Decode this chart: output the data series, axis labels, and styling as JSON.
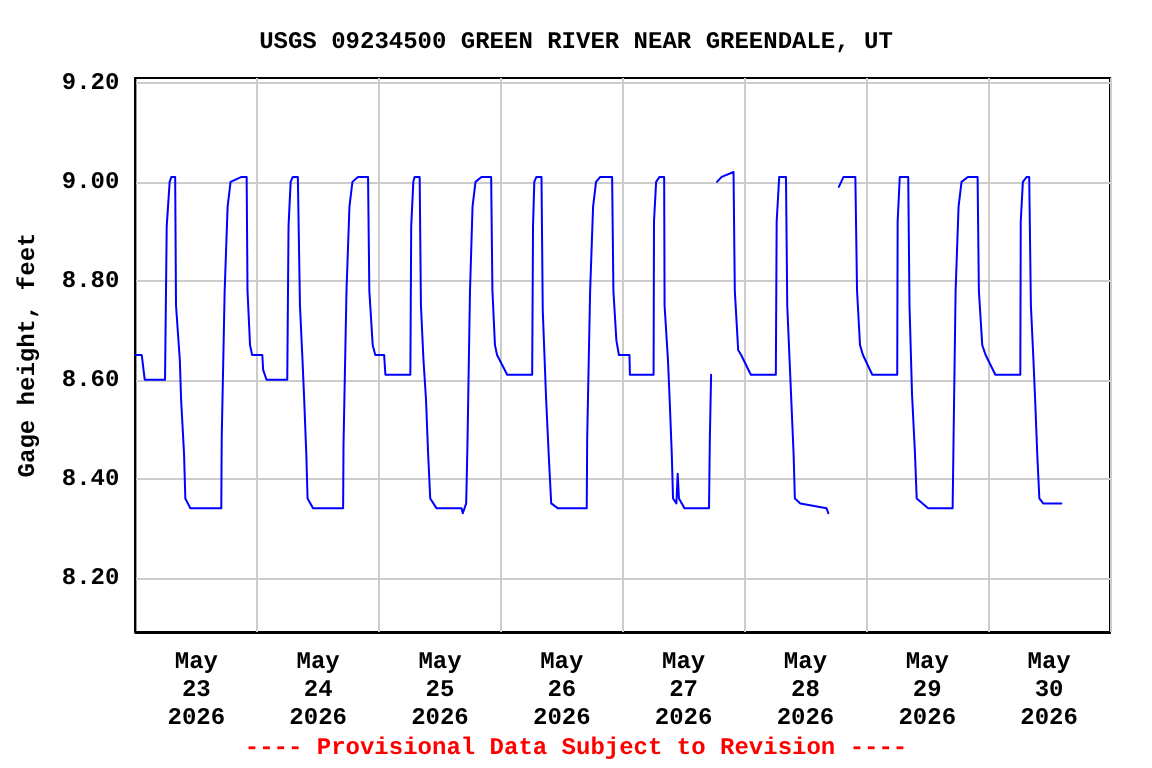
{
  "chart_data": {
    "type": "line",
    "title": "USGS 09234500 GREEN RIVER NEAR GREENDALE, UT",
    "ylabel": "Gage height, feet",
    "annotations": [
      "---- Provisional Data Subject to Revision ----"
    ],
    "xlim": [
      "2026-05-23T00:00",
      "2026-05-31T00:00"
    ],
    "xticks": [
      {
        "value": "2026-05-23T00:00",
        "label": null
      },
      {
        "value": "2026-05-24T00:00",
        "label": null
      },
      {
        "value": "2026-05-25T00:00",
        "label": null
      },
      {
        "value": "2026-05-26T00:00",
        "label": null
      },
      {
        "value": "2026-05-27T00:00",
        "label": null
      },
      {
        "value": "2026-05-28T00:00",
        "label": null
      },
      {
        "value": "2026-05-29T00:00",
        "label": null
      },
      {
        "value": "2026-05-30T00:00",
        "label": null
      },
      {
        "value": "2026-05-31T00:00",
        "label": null
      },
      {
        "value": "2026-05-23T12:00",
        "label": "May 23 2026"
      },
      {
        "value": "2026-05-24T12:00",
        "label": "May 24 2026"
      },
      {
        "value": "2026-05-25T12:00",
        "label": "May 25 2026"
      },
      {
        "value": "2026-05-26T12:00",
        "label": "May 26 2026"
      },
      {
        "value": "2026-05-27T12:00",
        "label": "May 27 2026"
      },
      {
        "value": "2026-05-28T12:00",
        "label": "May 28 2026"
      },
      {
        "value": "2026-05-29T12:00",
        "label": "May 29 2026"
      },
      {
        "value": "2026-05-30T12:00",
        "label": "May 30 2026"
      }
    ],
    "ylim": [
      8.09,
      9.21
    ],
    "yticks": [
      {
        "value": 8.2,
        "label": "8.20"
      },
      {
        "value": 8.4,
        "label": "8.40"
      },
      {
        "value": 8.6,
        "label": "8.60"
      },
      {
        "value": 8.8,
        "label": "8.80"
      },
      {
        "value": 9.0,
        "label": "9.00"
      },
      {
        "value": 9.2,
        "label": "9.20"
      }
    ],
    "grid": true,
    "marker": "none",
    "line_style": "solid",
    "series": [
      {
        "color": "#0000ff",
        "x": [
          "2026-05-23T00:00",
          "2026-05-23T01:15",
          "2026-05-23T01:50",
          "2026-05-23T05:50",
          "2026-05-23T06:10",
          "2026-05-23T06:45",
          "2026-05-23T07:05",
          "2026-05-23T07:50",
          "2026-05-23T08:00",
          "2026-05-23T08:45",
          "2026-05-23T09:00",
          "2026-05-23T09:35",
          "2026-05-23T09:50",
          "2026-05-23T10:50",
          "2026-05-23T16:55",
          "2026-05-23T17:00",
          "2026-05-23T17:35",
          "2026-05-23T18:10",
          "2026-05-23T18:45",
          "2026-05-23T20:55",
          "2026-05-23T21:55",
          "2026-05-23T22:05",
          "2026-05-23T22:35",
          "2026-05-23T23:00",
          "2026-05-24T01:00",
          "2026-05-24T01:10",
          "2026-05-24T01:50",
          "2026-05-24T05:55",
          "2026-05-24T06:10",
          "2026-05-24T06:35",
          "2026-05-24T07:00",
          "2026-05-24T08:00",
          "2026-05-24T08:25",
          "2026-05-24T08:55",
          "2026-05-24T09:15",
          "2026-05-24T09:40",
          "2026-05-24T09:55",
          "2026-05-24T11:00",
          "2026-05-24T16:55",
          "2026-05-24T17:00",
          "2026-05-24T17:35",
          "2026-05-24T18:10",
          "2026-05-24T18:45",
          "2026-05-24T19:50",
          "2026-05-24T21:50",
          "2026-05-24T22:05",
          "2026-05-24T22:45",
          "2026-05-24T23:15",
          "2026-05-25T01:00",
          "2026-05-25T01:15",
          "2026-05-25T06:10",
          "2026-05-25T06:20",
          "2026-05-25T06:45",
          "2026-05-25T07:00",
          "2026-05-25T08:00",
          "2026-05-25T08:15",
          "2026-05-25T08:45",
          "2026-05-25T09:15",
          "2026-05-25T09:40",
          "2026-05-25T10:05",
          "2026-05-25T11:20",
          "2026-05-25T16:15",
          "2026-05-25T16:30",
          "2026-05-25T17:10",
          "2026-05-25T17:25",
          "2026-05-25T17:55",
          "2026-05-25T18:25",
          "2026-05-25T19:00",
          "2026-05-25T20:10",
          "2026-05-25T22:05",
          "2026-05-25T22:20",
          "2026-05-25T22:50",
          "2026-05-25T23:15",
          "2026-05-26T01:15",
          "2026-05-26T06:10",
          "2026-05-26T06:20",
          "2026-05-26T06:35",
          "2026-05-26T07:00",
          "2026-05-26T08:00",
          "2026-05-26T08:15",
          "2026-05-26T08:55",
          "2026-05-26T09:25",
          "2026-05-26T09:55",
          "2026-05-26T11:15",
          "2026-05-26T16:55",
          "2026-05-26T17:00",
          "2026-05-26T17:35",
          "2026-05-26T18:10",
          "2026-05-26T18:45",
          "2026-05-26T19:35",
          "2026-05-26T21:55",
          "2026-05-26T22:10",
          "2026-05-26T22:45",
          "2026-05-26T23:15",
          "2026-05-27T01:20",
          "2026-05-27T01:25",
          "2026-05-27T06:05",
          "2026-05-27T06:10",
          "2026-05-27T06:35",
          "2026-05-27T07:15",
          "2026-05-27T08:10",
          "2026-05-27T08:15",
          "2026-05-27T08:55",
          "2026-05-27T09:15",
          "2026-05-27T09:40",
          "2026-05-27T09:55",
          "2026-05-27T10:35",
          "2026-05-27T10:50",
          "2026-05-27T11:05",
          "2026-05-27T12:10",
          "2026-05-27T17:00",
          "2026-05-27T17:10",
          "2026-05-27T17:25",
          "2026-05-27T18:00",
          "2026-05-27T18:35",
          "2026-05-27T19:30",
          "2026-05-27T21:50",
          "2026-05-27T22:05",
          "2026-05-27T22:45",
          "2026-05-27T23:20",
          "2026-05-28T01:15",
          "2026-05-28T06:10",
          "2026-05-28T06:20",
          "2026-05-28T06:50",
          "2026-05-28T08:10",
          "2026-05-28T08:25",
          "2026-05-28T09:10",
          "2026-05-28T09:40",
          "2026-05-28T09:55",
          "2026-05-28T11:00",
          "2026-05-28T16:10",
          "2026-05-28T16:30",
          "2026-05-28T17:30",
          "2026-05-28T18:35",
          "2026-05-28T19:30",
          "2026-05-28T21:50",
          "2026-05-28T22:10",
          "2026-05-28T22:45",
          "2026-05-28T23:20",
          "2026-05-29T01:10",
          "2026-05-29T06:05",
          "2026-05-29T06:10",
          "2026-05-29T06:35",
          "2026-05-29T08:15",
          "2026-05-29T08:30",
          "2026-05-29T09:00",
          "2026-05-29T09:35",
          "2026-05-29T09:55",
          "2026-05-29T12:10",
          "2026-05-29T17:00",
          "2026-05-29T17:10",
          "2026-05-29T17:35",
          "2026-05-29T18:10",
          "2026-05-29T18:45",
          "2026-05-29T20:00",
          "2026-05-29T21:55",
          "2026-05-29T22:10",
          "2026-05-29T22:50",
          "2026-05-29T23:30",
          "2026-05-30T01:25",
          "2026-05-30T06:20",
          "2026-05-30T06:25",
          "2026-05-30T06:50",
          "2026-05-30T07:35",
          "2026-05-30T08:05",
          "2026-05-30T08:25",
          "2026-05-30T08:55",
          "2026-05-30T09:15",
          "2026-05-30T09:40",
          "2026-05-30T10:05",
          "2026-05-30T10:50",
          "2026-05-30T14:25"
        ],
        "values": [
          8.65,
          8.65,
          8.6,
          8.6,
          8.91,
          9.0,
          9.01,
          9.01,
          8.75,
          8.64,
          8.56,
          8.45,
          8.36,
          8.34,
          8.34,
          8.48,
          8.78,
          8.95,
          9.0,
          9.01,
          9.01,
          8.78,
          8.67,
          8.65,
          8.65,
          8.62,
          8.6,
          8.6,
          8.91,
          9.0,
          9.01,
          9.01,
          8.75,
          8.64,
          8.56,
          8.45,
          8.36,
          8.34,
          8.34,
          8.47,
          8.78,
          8.95,
          9.0,
          9.01,
          9.01,
          8.78,
          8.67,
          8.65,
          8.65,
          8.61,
          8.61,
          8.91,
          9.0,
          9.01,
          9.01,
          8.75,
          8.64,
          8.56,
          8.45,
          8.36,
          8.34,
          8.34,
          8.33,
          8.35,
          8.47,
          8.78,
          8.95,
          9.0,
          9.01,
          9.01,
          8.78,
          8.67,
          8.65,
          8.61,
          8.61,
          8.91,
          9.0,
          9.01,
          9.01,
          8.74,
          8.56,
          8.45,
          8.35,
          8.34,
          8.34,
          8.48,
          8.78,
          8.95,
          9.0,
          9.01,
          9.01,
          8.78,
          8.68,
          8.65,
          8.65,
          8.61,
          8.61,
          8.92,
          9.0,
          9.01,
          9.01,
          8.75,
          8.64,
          8.56,
          8.45,
          8.36,
          8.35,
          8.41,
          8.36,
          8.34,
          8.34,
          8.48,
          8.61,
          null,
          9.0,
          9.01,
          9.02,
          8.78,
          8.66,
          8.65,
          8.61,
          8.61,
          8.92,
          9.01,
          9.01,
          8.75,
          8.57,
          8.45,
          8.36,
          8.35,
          8.34,
          8.33,
          null,
          8.99,
          9.01,
          9.01,
          8.78,
          8.67,
          8.65,
          8.61,
          8.61,
          8.92,
          9.01,
          9.01,
          8.75,
          8.57,
          8.45,
          8.36,
          8.34,
          8.34,
          8.47,
          8.78,
          8.95,
          9.0,
          9.01,
          9.01,
          8.78,
          8.67,
          8.65,
          8.61,
          8.61,
          8.92,
          9.0,
          9.01,
          9.01,
          8.75,
          8.64,
          8.56,
          8.45,
          8.36,
          8.35,
          8.35
        ]
      }
    ]
  }
}
